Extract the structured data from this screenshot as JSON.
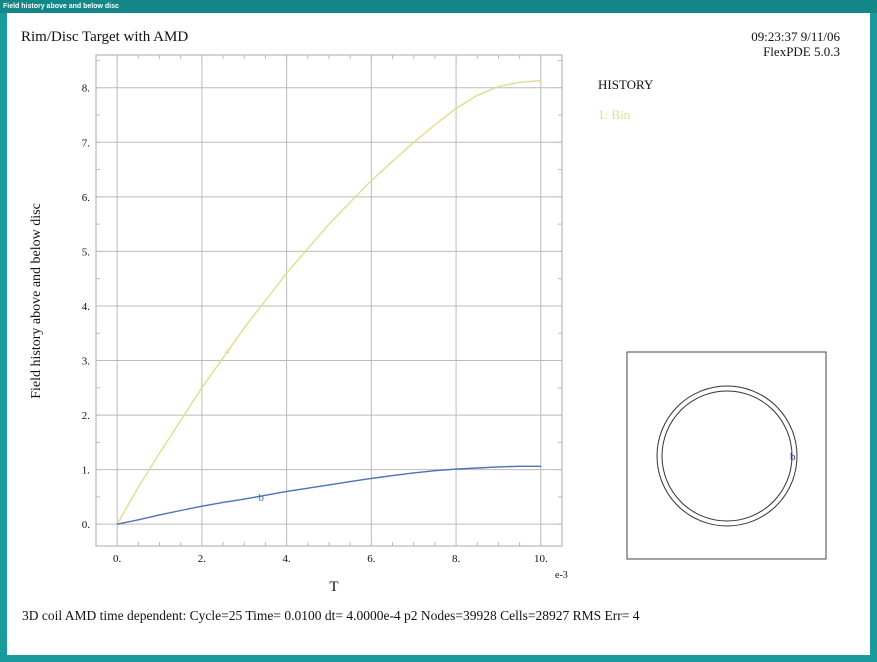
{
  "window": {
    "title": "Field history above and below disc"
  },
  "header": {
    "title": "Rim/Disc Target with AMD",
    "timestamp": "09:23:37 9/11/06",
    "version": "FlexPDE 5.0.3"
  },
  "legend": {
    "heading": "HISTORY",
    "entry": "1: Bin"
  },
  "chart_data": {
    "type": "line",
    "xlabel": "T",
    "ylabel": "Field history above and below disc",
    "x_exponent_label": "e-3",
    "xlim": [
      -0.5,
      10.5
    ],
    "ylim": [
      -0.4,
      8.6
    ],
    "x_ticks": [
      0,
      2,
      4,
      6,
      8,
      10
    ],
    "x_tick_labels": [
      "0.",
      "2.",
      "4.",
      "6.",
      "8.",
      "10."
    ],
    "y_ticks": [
      0,
      1,
      2,
      3,
      4,
      5,
      6,
      7,
      8
    ],
    "y_tick_labels": [
      "0.",
      "1.",
      "2.",
      "3.",
      "4.",
      "5.",
      "6.",
      "7.",
      "8."
    ],
    "grid": true,
    "series": [
      {
        "name": "a",
        "color": "#e2dc8c",
        "label_at": [
          2.6,
          3.2
        ],
        "x": [
          0,
          0.5,
          1,
          1.5,
          2,
          2.5,
          3,
          3.5,
          4,
          4.5,
          5,
          5.5,
          6,
          6.5,
          7,
          7.5,
          8,
          8.5,
          9,
          9.5,
          10
        ],
        "y": [
          0,
          0.68,
          1.3,
          1.9,
          2.5,
          3.05,
          3.6,
          4.1,
          4.6,
          5.05,
          5.5,
          5.9,
          6.3,
          6.65,
          7.0,
          7.32,
          7.62,
          7.86,
          8.02,
          8.1,
          8.13
        ]
      },
      {
        "name": "b",
        "color": "#4a72b8",
        "label_at": [
          3.4,
          0.5
        ],
        "x": [
          0,
          0.5,
          1,
          1.5,
          2,
          2.5,
          3,
          3.5,
          4,
          4.5,
          5,
          5.5,
          6,
          6.5,
          7,
          7.5,
          8,
          8.5,
          9,
          9.5,
          10
        ],
        "y": [
          0,
          0.08,
          0.17,
          0.25,
          0.33,
          0.4,
          0.46,
          0.53,
          0.6,
          0.66,
          0.72,
          0.78,
          0.84,
          0.89,
          0.94,
          0.98,
          1.01,
          1.03,
          1.05,
          1.06,
          1.06
        ]
      }
    ]
  },
  "inset": {
    "marker_label": "b",
    "marker_color": "#2244aa"
  },
  "status": {
    "text": "3D coil AMD time dependent:  Cycle=25  Time= 0.0100  dt= 4.0000e-4  p2  Nodes=39928  Cells=28927  RMS Err= 4"
  }
}
